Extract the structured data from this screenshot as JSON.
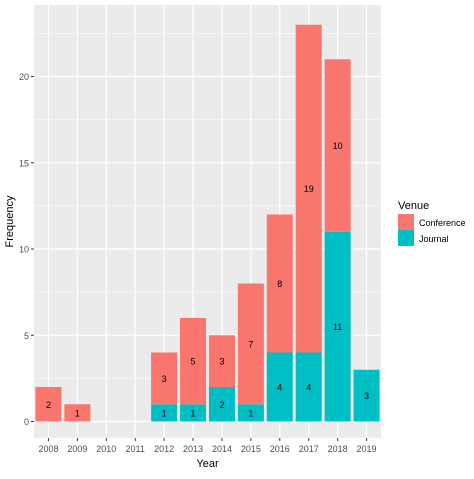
{
  "chart_data": {
    "type": "bar",
    "stacked": true,
    "title": "",
    "xlabel": "Year",
    "ylabel": "Frequency",
    "categories": [
      "2008",
      "2009",
      "2010",
      "2011",
      "2012",
      "2013",
      "2014",
      "2015",
      "2016",
      "2017",
      "2018",
      "2019"
    ],
    "series": [
      {
        "name": "Conference",
        "color": "#F8766D",
        "values": [
          2,
          1,
          0,
          0,
          3,
          5,
          3,
          7,
          8,
          19,
          10,
          0
        ],
        "labels": [
          "2",
          "1",
          "",
          "",
          "3",
          "5",
          "3",
          "7",
          "8",
          "19",
          "10",
          ""
        ]
      },
      {
        "name": "Journal",
        "color": "#00BFC4",
        "values": [
          0,
          0,
          0,
          0,
          1,
          1,
          2,
          1,
          4,
          4,
          11,
          3
        ],
        "labels": [
          "",
          "",
          "",
          "",
          "1",
          "1",
          "2",
          "1",
          "4",
          "4",
          "11",
          "3"
        ]
      }
    ],
    "ylim": [
      0,
      24
    ],
    "yticks": [
      0,
      5,
      10,
      15,
      20
    ],
    "grid": true,
    "legend": {
      "title": "Venue",
      "position": "right",
      "entries": [
        "Conference",
        "Journal"
      ]
    },
    "panel_background": "#EBEBEB",
    "grid_color": "#FFFFFF"
  }
}
